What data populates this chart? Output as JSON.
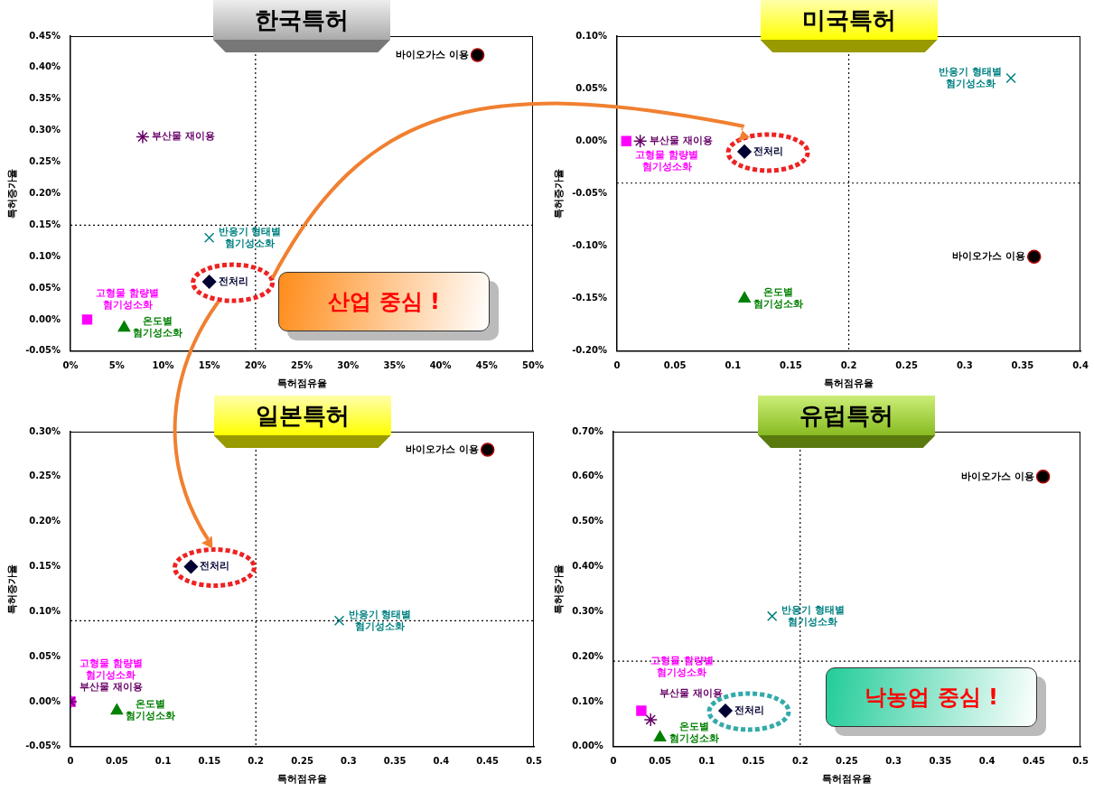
{
  "chart_data": [
    {
      "type": "scatter",
      "title": "한국특허",
      "xlabel": "특허점유율",
      "ylabel": "특허증가율",
      "xlim": [
        0,
        50
      ],
      "ylim": [
        -0.05,
        0.45
      ],
      "xticks": [
        {
          "value": 0,
          "label": "0%"
        },
        {
          "value": 5,
          "label": "5%"
        },
        {
          "value": 10,
          "label": "10%"
        },
        {
          "value": 15,
          "label": "15%"
        },
        {
          "value": 20,
          "label": "20%"
        },
        {
          "value": 25,
          "label": "25%"
        },
        {
          "value": 30,
          "label": "30%"
        },
        {
          "value": 35,
          "label": "35%"
        },
        {
          "value": 40,
          "label": "40%"
        },
        {
          "value": 45,
          "label": "45%"
        },
        {
          "value": 50,
          "label": "50%"
        }
      ],
      "yticks": [
        {
          "value": -0.05,
          "label": "-0.05%"
        },
        {
          "value": 0,
          "label": "0.00%"
        },
        {
          "value": 0.05,
          "label": "0.05%"
        },
        {
          "value": 0.1,
          "label": "0.10%"
        },
        {
          "value": 0.15,
          "label": "0.15%"
        },
        {
          "value": 0.2,
          "label": "0.20%"
        },
        {
          "value": 0.25,
          "label": "0.25%"
        },
        {
          "value": 0.3,
          "label": "0.30%"
        },
        {
          "value": 0.35,
          "label": "0.35%"
        },
        {
          "value": 0.4,
          "label": "0.40%"
        },
        {
          "value": 0.45,
          "label": "0.45%"
        }
      ],
      "series": [
        {
          "name": "바이오가스 이용",
          "color": "#000000",
          "marker": "circle",
          "x": [
            44
          ],
          "values": [
            0.42
          ]
        },
        {
          "name": "부산물 재이용",
          "color": "#660066",
          "marker": "cross",
          "x": [
            7.8
          ],
          "values": [
            0.29
          ]
        },
        {
          "name": "반응기 형태별 혐기성소화",
          "color": "#008080",
          "marker": "cross",
          "x": [
            15
          ],
          "values": [
            0.13
          ]
        },
        {
          "name": "전처리",
          "color": "#000033",
          "marker": "diamond",
          "x": [
            15
          ],
          "values": [
            0.06
          ]
        },
        {
          "name": "고형물 함량별 혐기성소화",
          "color": "#ff00ff",
          "marker": "square",
          "x": [
            1.8
          ],
          "values": [
            0
          ]
        },
        {
          "name": "온도별 혐기성소화",
          "color": "#008000",
          "marker": "triangle",
          "x": [
            5.8
          ],
          "values": [
            -0.013
          ]
        }
      ],
      "ref_lines": [
        {
          "axis": "x",
          "value": 20,
          "line_style": "dotted"
        },
        {
          "axis": "y",
          "value": 0.15,
          "line_style": "dotted"
        }
      ],
      "annotations": [
        "산업 중심 !"
      ],
      "legend": false,
      "grid": false
    },
    {
      "type": "scatter",
      "title": "미국특허",
      "xlabel": "특허점유율",
      "ylabel": "특허증가율",
      "xlim": [
        0,
        0.4
      ],
      "ylim": [
        -0.2,
        0.1
      ],
      "xticks": [
        0,
        0.05,
        0.1,
        0.15,
        0.2,
        0.25,
        0.3,
        0.35,
        0.4
      ],
      "yticks": [
        {
          "value": -0.2,
          "label": "-0.20%"
        },
        {
          "value": -0.15,
          "label": "-0.15%"
        },
        {
          "value": -0.1,
          "label": "-0.10%"
        },
        {
          "value": -0.05,
          "label": "-0.05%"
        },
        {
          "value": 0,
          "label": "0.00%"
        },
        {
          "value": 0.05,
          "label": "0.05%"
        },
        {
          "value": 0.1,
          "label": "0.10%"
        }
      ],
      "series": [
        {
          "name": "바이오가스 이용",
          "color": "#000000",
          "marker": "circle",
          "x": [
            0.36
          ],
          "values": [
            -0.11
          ]
        },
        {
          "name": "부산물 재이용",
          "color": "#660066",
          "marker": "cross",
          "x": [
            0.02
          ],
          "values": [
            0
          ]
        },
        {
          "name": "반응기 형태별 혐기성소화",
          "color": "#008080",
          "marker": "cross",
          "x": [
            0.34
          ],
          "values": [
            0.06
          ]
        },
        {
          "name": "전처리",
          "color": "#000033",
          "marker": "diamond",
          "x": [
            0.11
          ],
          "values": [
            -0.01
          ]
        },
        {
          "name": "고형물 함량별 혐기성소화",
          "color": "#ff00ff",
          "marker": "square",
          "x": [
            0.008
          ],
          "values": [
            0
          ]
        },
        {
          "name": "온도별 혐기성소화",
          "color": "#008000",
          "marker": "triangle",
          "x": [
            0.11
          ],
          "values": [
            -0.15
          ]
        }
      ],
      "ref_lines": [
        {
          "axis": "x",
          "value": 0.2,
          "line_style": "dotted"
        },
        {
          "axis": "y",
          "value": -0.04,
          "line_style": "dotted"
        }
      ],
      "legend": false,
      "grid": false
    },
    {
      "type": "scatter",
      "title": "일본특허",
      "xlabel": "특허점유율",
      "ylabel": "특허증가율",
      "xlim": [
        0,
        0.5
      ],
      "ylim": [
        -0.05,
        0.3
      ],
      "xticks": [
        0,
        0.05,
        0.1,
        0.15,
        0.2,
        0.25,
        0.3,
        0.35,
        0.4,
        0.45,
        0.5
      ],
      "yticks": [
        {
          "value": -0.05,
          "label": "-0.05%"
        },
        {
          "value": 0,
          "label": "0.00%"
        },
        {
          "value": 0.05,
          "label": "0.05%"
        },
        {
          "value": 0.1,
          "label": "0.10%"
        },
        {
          "value": 0.15,
          "label": "0.15%"
        },
        {
          "value": 0.2,
          "label": "0.20%"
        },
        {
          "value": 0.25,
          "label": "0.25%"
        },
        {
          "value": 0.3,
          "label": "0.30%"
        }
      ],
      "series": [
        {
          "name": "바이오가스 이용",
          "color": "#000000",
          "marker": "circle",
          "x": [
            0.45
          ],
          "values": [
            0.28
          ]
        },
        {
          "name": "부산물 재이용",
          "color": "#660066",
          "marker": "cross",
          "x": [
            0
          ],
          "values": [
            0
          ]
        },
        {
          "name": "반응기 형태별 혐기성소화",
          "color": "#008080",
          "marker": "cross",
          "x": [
            0.29
          ],
          "values": [
            0.09
          ]
        },
        {
          "name": "전처리",
          "color": "#000033",
          "marker": "diamond",
          "x": [
            0.13
          ],
          "values": [
            0.15
          ]
        },
        {
          "name": "고형물 함량별 혐기성소화",
          "color": "#ff00ff",
          "marker": "square",
          "x": [
            0
          ],
          "values": [
            0
          ]
        },
        {
          "name": "온도별 혐기성소화",
          "color": "#008000",
          "marker": "triangle",
          "x": [
            0.05
          ],
          "values": [
            -0.01
          ]
        }
      ],
      "ref_lines": [
        {
          "axis": "x",
          "value": 0.2,
          "line_style": "dotted"
        },
        {
          "axis": "y",
          "value": 0.09,
          "line_style": "dotted"
        }
      ],
      "legend": false,
      "grid": false
    },
    {
      "type": "scatter",
      "title": "유럽특허",
      "xlabel": "특허점유율",
      "ylabel": "특허증가율",
      "xlim": [
        0,
        0.5
      ],
      "ylim": [
        0,
        0.7
      ],
      "xticks": [
        0,
        0.05,
        0.1,
        0.15,
        0.2,
        0.25,
        0.3,
        0.35,
        0.4,
        0.45,
        0.5
      ],
      "yticks": [
        {
          "value": 0,
          "label": "0.00%"
        },
        {
          "value": 0.1,
          "label": "0.10%"
        },
        {
          "value": 0.2,
          "label": "0.20%"
        },
        {
          "value": 0.3,
          "label": "0.30%"
        },
        {
          "value": 0.4,
          "label": "0.40%"
        },
        {
          "value": 0.5,
          "label": "0.50%"
        },
        {
          "value": 0.6,
          "label": "0.60%"
        },
        {
          "value": 0.7,
          "label": "0.70%"
        }
      ],
      "series": [
        {
          "name": "바이오가스 이용",
          "color": "#000000",
          "marker": "circle",
          "x": [
            0.46
          ],
          "values": [
            0.6
          ]
        },
        {
          "name": "부산물 재이용",
          "color": "#660066",
          "marker": "cross",
          "x": [
            0.04
          ],
          "values": [
            0.06
          ]
        },
        {
          "name": "반응기 형태별 혐기성소화",
          "color": "#008080",
          "marker": "cross",
          "x": [
            0.17
          ],
          "values": [
            0.29
          ]
        },
        {
          "name": "전처리",
          "color": "#000033",
          "marker": "diamond",
          "x": [
            0.12
          ],
          "values": [
            0.08
          ]
        },
        {
          "name": "고형물 함량별 혐기성소화",
          "color": "#ff00ff",
          "marker": "square",
          "x": [
            0.03
          ],
          "values": [
            0.08
          ]
        },
        {
          "name": "온도별 혐기성소화",
          "color": "#008000",
          "marker": "triangle",
          "x": [
            0.05
          ],
          "values": [
            0.02
          ]
        }
      ],
      "ref_lines": [
        {
          "axis": "x",
          "value": 0.2,
          "line_style": "dotted"
        },
        {
          "axis": "y",
          "value": 0.19,
          "line_style": "dotted"
        }
      ],
      "annotations": [
        "낙농업 중심 !"
      ],
      "legend": false,
      "grid": false
    }
  ]
}
